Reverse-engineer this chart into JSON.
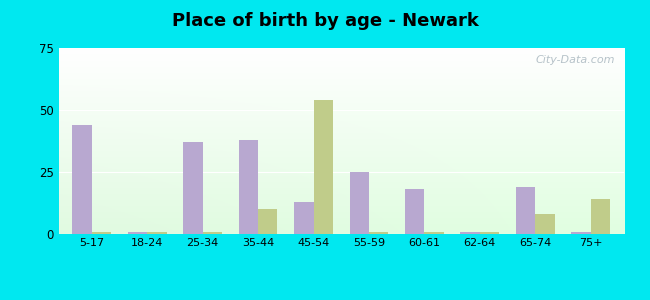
{
  "title": "Place of birth by age - Newark",
  "categories": [
    "5-17",
    "18-24",
    "25-34",
    "35-44",
    "45-54",
    "55-59",
    "60-61",
    "62-64",
    "65-74",
    "75+"
  ],
  "born_in_state": [
    44,
    1,
    37,
    38,
    13,
    25,
    18,
    1,
    19,
    1
  ],
  "born_in_other": [
    1,
    1,
    1,
    10,
    54,
    1,
    1,
    1,
    8,
    14
  ],
  "bar_color_state": "#b8a8d0",
  "bar_color_other": "#c0cc8a",
  "ylim": [
    0,
    75
  ],
  "yticks": [
    0,
    25,
    50,
    75
  ],
  "outer_bg": "#00e8f0",
  "watermark": "City-Data.com",
  "bar_width": 0.35,
  "title_fontsize": 13
}
